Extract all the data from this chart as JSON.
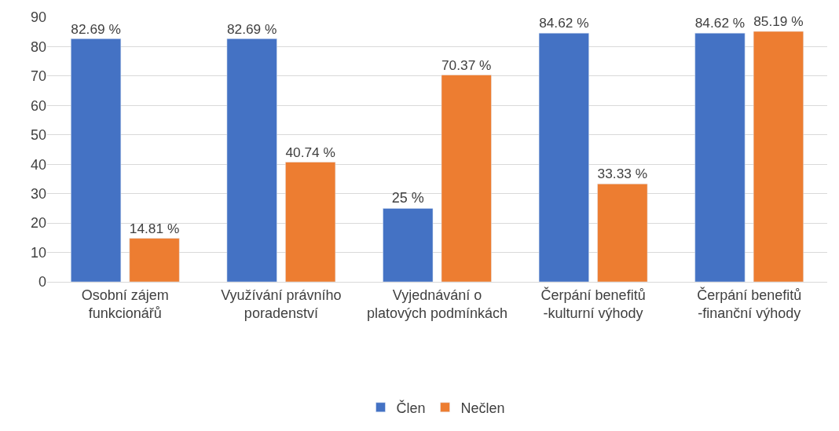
{
  "chart_data": {
    "type": "bar",
    "categories": [
      "Osobní zájem funkcionářů",
      "Využívání právního poradenství",
      "Vyjednávání o platových podmínkách",
      "Čerpání benefitů -kulturní výhody",
      "Čerpání benefitů -finanční výhody"
    ],
    "series": [
      {
        "name": "Člen",
        "color": "#4472c4",
        "values": [
          82.69,
          82.69,
          25,
          84.62,
          84.62
        ],
        "value_labels": [
          "82.69 %",
          "82.69 %",
          "25 %",
          "84.62 %",
          "84.62 %"
        ]
      },
      {
        "name": "Nečlen",
        "color": "#ed7d31",
        "values": [
          14.81,
          40.74,
          70.37,
          33.33,
          85.19
        ],
        "value_labels": [
          "14.81 %",
          "40.74 %",
          "70.37 %",
          "33.33 %",
          "85.19 %"
        ]
      }
    ],
    "ylim": [
      0,
      90
    ],
    "yticks": [
      0,
      10,
      20,
      30,
      40,
      50,
      60,
      70,
      80,
      90
    ],
    "grid": "y",
    "legend": "bottom"
  }
}
